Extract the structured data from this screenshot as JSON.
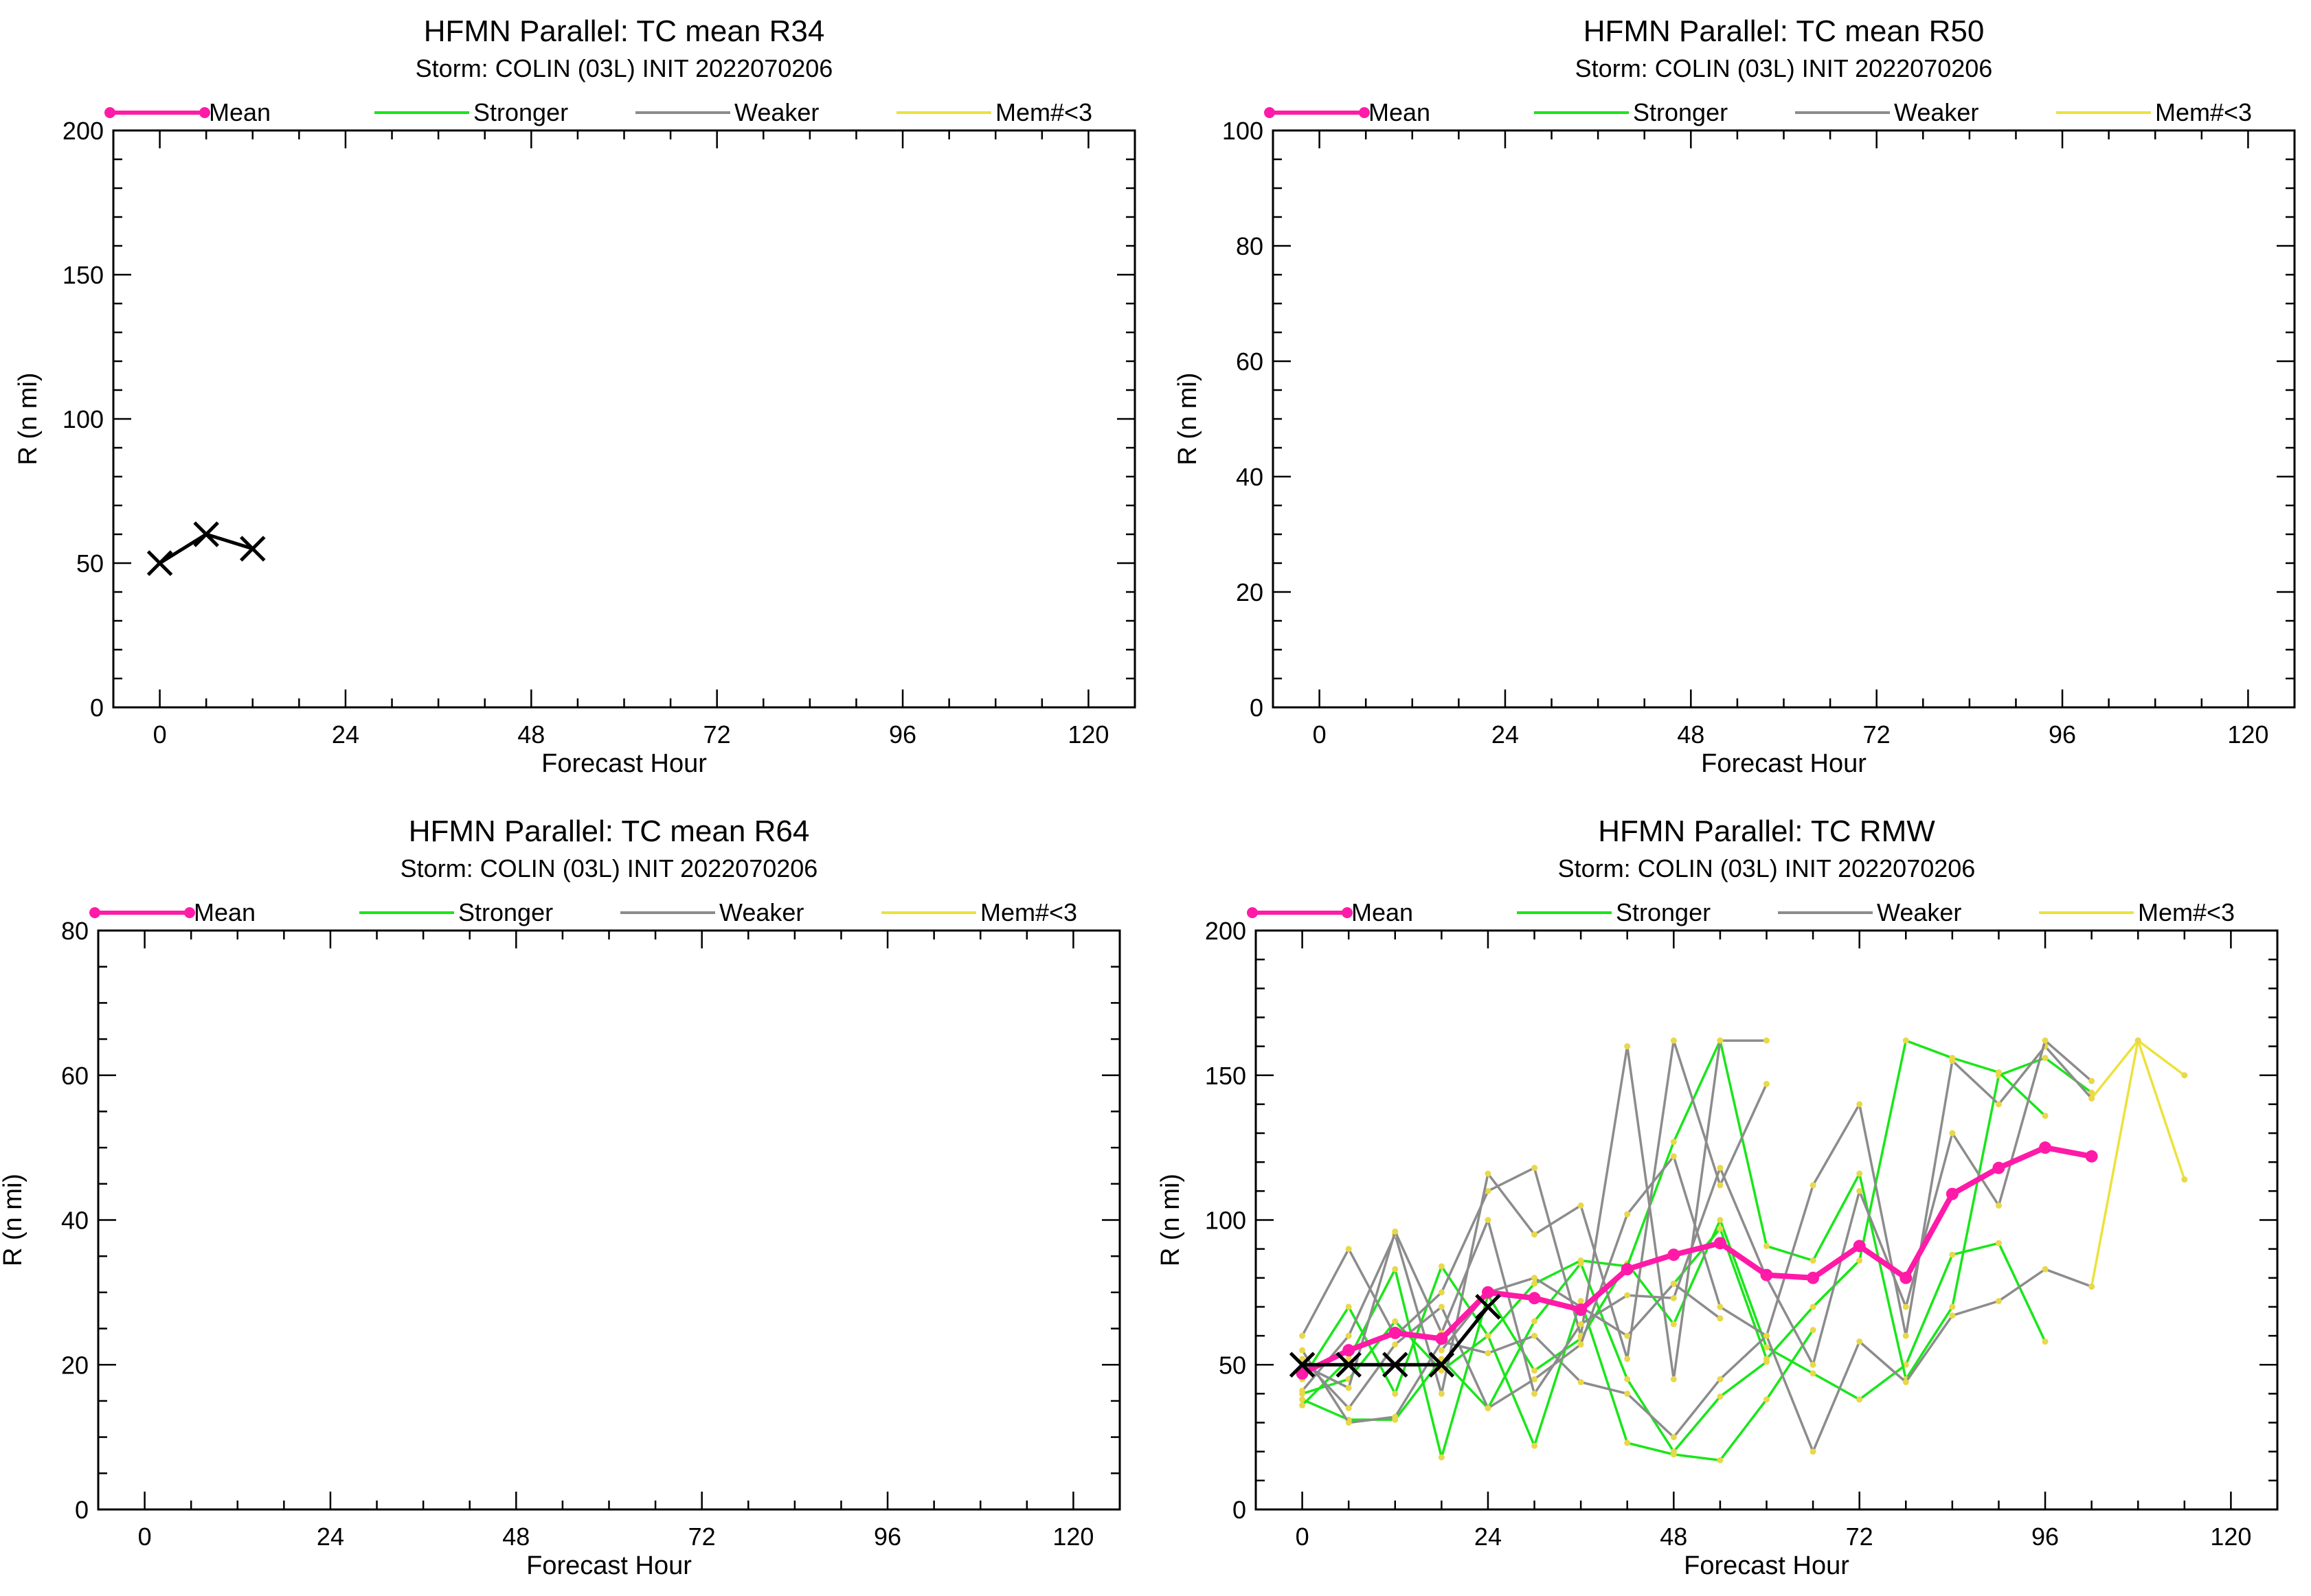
{
  "legend_labels": {
    "mean": "Mean",
    "stronger": "Stronger",
    "weaker": "Weaker",
    "few": "Mem#<3"
  },
  "colors": {
    "mean": "#ff1aa8",
    "stronger": "#19e619",
    "weaker": "#8c8c8c",
    "few": "#ece23c",
    "obs": "#000000",
    "member_dot": "#e8d84a"
  },
  "chart_data": [
    {
      "type": "line",
      "title": "HFMN Parallel: TC mean R34",
      "subtitle": "Storm: COLIN (03L) INIT 2022070206",
      "xlabel": "Forecast Hour",
      "ylabel": "R (n mi)",
      "xlim": [
        -6,
        126
      ],
      "ylim": [
        0,
        200
      ],
      "xticks": [
        0,
        24,
        48,
        72,
        96,
        120
      ],
      "yticks": [
        0,
        50,
        100,
        150,
        200
      ],
      "yminor": 10,
      "legend": "top",
      "mean": {
        "x": [],
        "y": []
      },
      "observed": {
        "x": [
          0,
          6,
          12
        ],
        "y": [
          50,
          60,
          55
        ]
      },
      "members": []
    },
    {
      "type": "line",
      "title": "HFMN Parallel: TC mean R50",
      "subtitle": "Storm: COLIN (03L) INIT 2022070206",
      "xlabel": "Forecast Hour",
      "ylabel": "R (n mi)",
      "xlim": [
        -6,
        126
      ],
      "ylim": [
        0,
        100
      ],
      "xticks": [
        0,
        24,
        48,
        72,
        96,
        120
      ],
      "yticks": [
        0,
        20,
        40,
        60,
        80,
        100
      ],
      "yminor": 5,
      "legend": "top",
      "mean": {
        "x": [],
        "y": []
      },
      "observed": {
        "x": [],
        "y": []
      },
      "members": []
    },
    {
      "type": "line",
      "title": "HFMN Parallel: TC mean R64",
      "subtitle": "Storm: COLIN (03L) INIT 2022070206",
      "xlabel": "Forecast Hour",
      "ylabel": "R (n mi)",
      "xlim": [
        -6,
        126
      ],
      "ylim": [
        0,
        80
      ],
      "xticks": [
        0,
        24,
        48,
        72,
        96,
        120
      ],
      "yticks": [
        0,
        20,
        40,
        60,
        80
      ],
      "yminor": 5,
      "legend": "top",
      "mean": {
        "x": [],
        "y": []
      },
      "observed": {
        "x": [],
        "y": []
      },
      "members": []
    },
    {
      "type": "line",
      "title": "HFMN Parallel: TC RMW",
      "subtitle": "Storm: COLIN (03L) INIT 2022070206",
      "xlabel": "Forecast Hour",
      "ylabel": "R (n mi)",
      "xlim": [
        -6,
        126
      ],
      "ylim": [
        0,
        200
      ],
      "xticks": [
        0,
        24,
        48,
        72,
        96,
        120
      ],
      "yticks": [
        0,
        50,
        100,
        150,
        200
      ],
      "yminor": 10,
      "legend": "top",
      "mean": {
        "x": [
          0,
          6,
          12,
          18,
          24,
          30,
          36,
          42,
          48,
          54,
          60,
          66,
          72,
          78,
          84,
          90,
          96,
          102
        ],
        "y": [
          47,
          55,
          61,
          59,
          75,
          73,
          69,
          83,
          88,
          92,
          81,
          80,
          91,
          80,
          109,
          118,
          125,
          122
        ]
      },
      "observed": {
        "x": [
          0,
          6,
          12,
          18,
          24
        ],
        "y": [
          50,
          50,
          50,
          50,
          70
        ]
      },
      "members": [
        {
          "kind": "stronger",
          "x": [
            0,
            6,
            12,
            18,
            24,
            30,
            36,
            42,
            48,
            54,
            60
          ],
          "y": [
            38,
            31,
            31,
            52,
            35,
            65,
            85,
            45,
            20,
            39,
            51
          ]
        },
        {
          "kind": "stronger",
          "x": [
            0,
            6,
            12,
            18,
            24,
            30,
            36,
            42,
            48,
            54,
            60,
            66
          ],
          "y": [
            45,
            70,
            40,
            84,
            60,
            22,
            72,
            23,
            19,
            17,
            38,
            62
          ]
        },
        {
          "kind": "stronger",
          "x": [
            0,
            6,
            12,
            18,
            24,
            30,
            36,
            42,
            48,
            54,
            60,
            66,
            72,
            78,
            84,
            90,
            96
          ],
          "y": [
            36,
            52,
            83,
            18,
            74,
            48,
            59,
            85,
            64,
            100,
            56,
            47,
            38,
            50,
            88,
            92,
            58
          ]
        },
        {
          "kind": "stronger",
          "x": [
            0,
            6,
            12,
            18,
            24,
            30,
            36,
            42,
            48,
            54,
            60,
            66,
            72,
            78,
            84,
            90,
            96,
            102
          ],
          "y": [
            40,
            45,
            65,
            48,
            60,
            78,
            86,
            84,
            127,
            162,
            91,
            86,
            116,
            45,
            70,
            150,
            156,
            144
          ]
        },
        {
          "kind": "stronger",
          "x": [
            48,
            54,
            60,
            66,
            72,
            78,
            84,
            90,
            96
          ],
          "y": [
            78,
            97,
            52,
            70,
            86,
            162,
            156,
            151,
            136
          ]
        },
        {
          "kind": "weaker",
          "x": [
            0,
            6,
            12,
            18,
            24,
            30,
            36,
            42,
            48,
            54,
            60
          ],
          "y": [
            60,
            90,
            60,
            75,
            110,
            118,
            60,
            160,
            45,
            162,
            162
          ]
        },
        {
          "kind": "weaker",
          "x": [
            0,
            6,
            12,
            18,
            24,
            30,
            36,
            42,
            48,
            54,
            60
          ],
          "y": [
            41,
            60,
            95,
            40,
            116,
            95,
            105,
            52,
            162,
            112,
            147
          ]
        },
        {
          "kind": "weaker",
          "x": [
            0,
            6,
            12,
            18,
            24,
            30,
            36,
            42,
            48,
            54,
            60,
            66,
            72,
            78,
            84,
            90,
            96,
            102
          ],
          "y": [
            52,
            35,
            57,
            70,
            35,
            45,
            57,
            102,
            122,
            70,
            60,
            112,
            140,
            60,
            155,
            140,
            160,
            142
          ]
        },
        {
          "kind": "weaker",
          "x": [
            0,
            6,
            12,
            18,
            24,
            30,
            36,
            42,
            48,
            54,
            60,
            66,
            72,
            78,
            84,
            90,
            96,
            102
          ],
          "y": [
            50,
            42,
            96,
            61,
            100,
            40,
            64,
            74,
            73,
            118,
            80,
            50,
            110,
            70,
            130,
            105,
            162,
            148
          ]
        },
        {
          "kind": "weaker",
          "x": [
            0,
            6,
            12,
            18,
            24,
            30,
            36,
            42,
            48,
            54,
            60,
            66,
            72,
            78,
            84,
            90,
            96,
            102
          ],
          "y": [
            55,
            30,
            32,
            58,
            54,
            60,
            44,
            40,
            25,
            45,
            60,
            20,
            58,
            44,
            67,
            72,
            83,
            77
          ]
        },
        {
          "kind": "weaker",
          "x": [
            18,
            24,
            30,
            36,
            42,
            48,
            54
          ],
          "y": [
            55,
            75,
            80,
            70,
            60,
            78,
            66
          ]
        },
        {
          "kind": "few",
          "x": [
            102,
            108,
            114
          ],
          "y": [
            142,
            162,
            150
          ]
        },
        {
          "kind": "few",
          "x": [
            102,
            108,
            114
          ],
          "y": [
            77,
            162,
            114
          ]
        }
      ]
    }
  ]
}
